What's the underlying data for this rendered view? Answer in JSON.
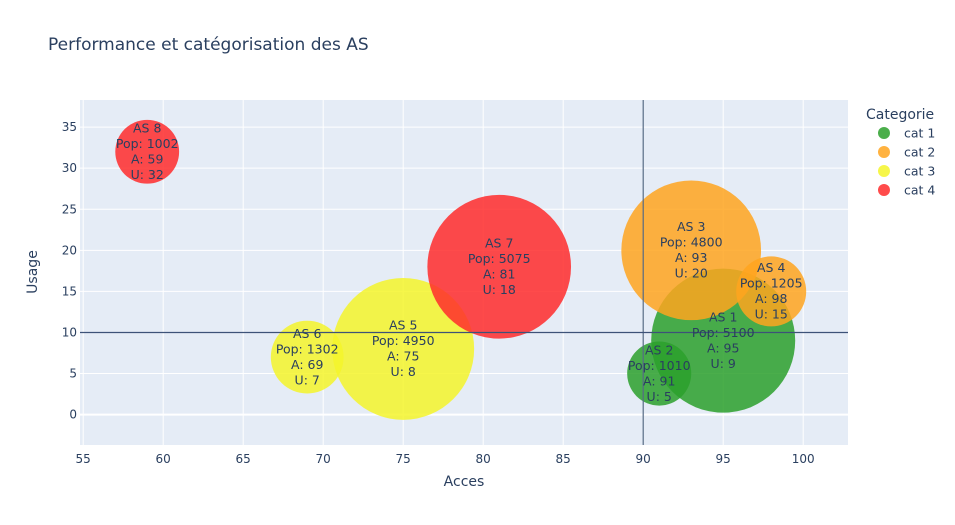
{
  "chart_data": {
    "type": "scatter",
    "title": "Performance et catégorisation des AS",
    "xlabel": "Acces",
    "ylabel": "Usage",
    "xlim": [
      54.8,
      102.8
    ],
    "ylim": [
      -3.7,
      38.3
    ],
    "xticks": [
      55,
      60,
      65,
      70,
      75,
      80,
      85,
      90,
      95,
      100
    ],
    "yticks": [
      0,
      5,
      10,
      15,
      20,
      25,
      30,
      35
    ],
    "reference_lines": {
      "x": 90,
      "y": 10
    },
    "grid": true,
    "legend_title": "Categorie",
    "legend_position": "right",
    "series": [
      {
        "name": "cat 1",
        "color": "#2ca02c",
        "points": [
          {
            "label": "AS 1",
            "x": 95,
            "y": 9,
            "pop": 5100,
            "label_lines": [
              "AS 1",
              "Pop: 5100",
              "A: 95",
              "U: 9"
            ]
          },
          {
            "label": "AS 2",
            "x": 91,
            "y": 5,
            "pop": 1010,
            "label_lines": [
              "AS 2",
              "Pop: 1010",
              "A: 91",
              "U: 5"
            ]
          }
        ]
      },
      {
        "name": "cat 2",
        "color": "#ffa51f",
        "points": [
          {
            "label": "AS 3",
            "x": 93,
            "y": 20,
            "pop": 4800,
            "label_lines": [
              "AS 3",
              "Pop: 4800",
              "A: 93",
              "U: 20"
            ]
          },
          {
            "label": "AS 4",
            "x": 98,
            "y": 15,
            "pop": 1205,
            "label_lines": [
              "AS 4",
              "Pop: 1205",
              "A: 98",
              "U: 15"
            ]
          }
        ]
      },
      {
        "name": "cat 3",
        "color": "#f5f52a",
        "points": [
          {
            "label": "AS 5",
            "x": 75,
            "y": 8,
            "pop": 4950,
            "label_lines": [
              "AS 5",
              "Pop: 4950",
              "A: 75",
              "U: 8"
            ]
          },
          {
            "label": "AS 6",
            "x": 69,
            "y": 7,
            "pop": 1302,
            "label_lines": [
              "AS 6",
              "Pop: 1302",
              "A: 69",
              "U: 7"
            ]
          }
        ]
      },
      {
        "name": "cat 4",
        "color": "#ff2b2b",
        "points": [
          {
            "label": "AS 7",
            "x": 81,
            "y": 18,
            "pop": 5075,
            "label_lines": [
              "AS 7",
              "Pop: 5075",
              "A: 81",
              "U: 18"
            ]
          },
          {
            "label": "AS 8",
            "x": 59,
            "y": 32,
            "pop": 1002,
            "label_lines": [
              "AS 8",
              "Pop: 1002",
              "A: 59",
              "U: 32"
            ]
          }
        ]
      }
    ]
  }
}
